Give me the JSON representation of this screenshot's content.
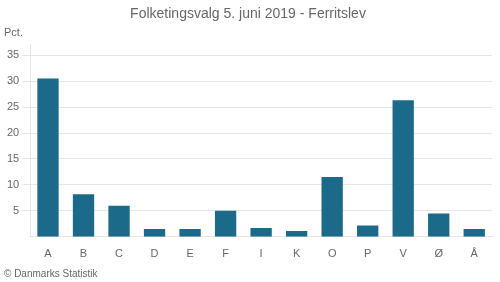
{
  "chart_data": {
    "type": "bar",
    "title": "Folketingsvalg 5. juni 2019 - Ferritslev",
    "ylabel": "Pct.",
    "footer": "© Danmarks Statistik",
    "categories": [
      "A",
      "B",
      "C",
      "D",
      "E",
      "F",
      "I",
      "K",
      "O",
      "P",
      "V",
      "Ø",
      "Å"
    ],
    "values": [
      30.5,
      8.2,
      6.0,
      1.5,
      1.5,
      5.0,
      1.7,
      1.1,
      11.5,
      2.2,
      26.3,
      4.5,
      1.5
    ],
    "color": "#1b6a8a",
    "ylim": [
      0,
      37
    ],
    "yticks": [
      5,
      10,
      15,
      20,
      25,
      30,
      35
    ],
    "grid": true
  }
}
